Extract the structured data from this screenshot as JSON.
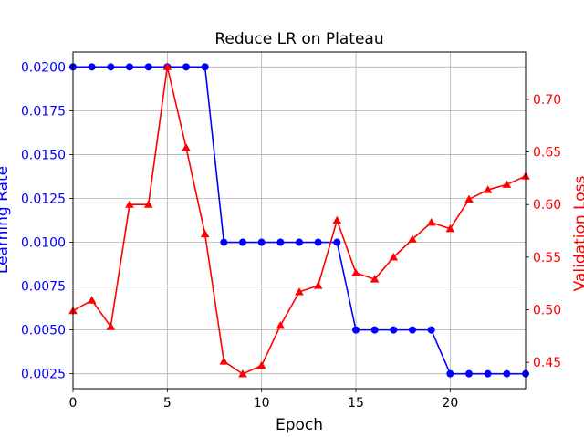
{
  "chart_data": {
    "type": "line",
    "title": "Reduce LR on Plateau",
    "xlabel": "Epoch",
    "ylabel_left": "Learning Rate",
    "ylabel_right": "Validation Loss",
    "xlim": [
      0,
      24
    ],
    "ylim_left": [
      0.00165,
      0.02085
    ],
    "ylim_right": [
      0.425,
      0.745
    ],
    "x_ticks": [
      0,
      5,
      10,
      15,
      20
    ],
    "y_ticks_left": [
      "0.0025",
      "0.0050",
      "0.0075",
      "0.0100",
      "0.0125",
      "0.0150",
      "0.0175",
      "0.0200"
    ],
    "y_ticks_right": [
      "0.45",
      "0.50",
      "0.55",
      "0.60",
      "0.65",
      "0.70"
    ],
    "grid": true,
    "x": [
      0,
      1,
      2,
      3,
      4,
      5,
      6,
      7,
      8,
      9,
      10,
      11,
      12,
      13,
      14,
      15,
      16,
      17,
      18,
      19,
      20,
      21,
      22,
      23,
      24
    ],
    "series": [
      {
        "name": "Learning Rate",
        "axis": "left",
        "color": "#0000ff",
        "marker": "circle",
        "values": [
          0.02,
          0.02,
          0.02,
          0.02,
          0.02,
          0.02,
          0.02,
          0.02,
          0.01,
          0.01,
          0.01,
          0.01,
          0.01,
          0.01,
          0.01,
          0.005,
          0.005,
          0.005,
          0.005,
          0.005,
          0.0025,
          0.0025,
          0.0025,
          0.0025,
          0.0025
        ]
      },
      {
        "name": "Validation Loss",
        "axis": "right",
        "color": "#ff0000",
        "marker": "triangle",
        "values": [
          0.499,
          0.509,
          0.484,
          0.6,
          0.6,
          0.731,
          0.654,
          0.572,
          0.451,
          0.439,
          0.447,
          0.485,
          0.517,
          0.523,
          0.585,
          0.535,
          0.529,
          0.55,
          0.567,
          0.583,
          0.577,
          0.605,
          0.614,
          0.619,
          0.627
        ]
      }
    ]
  }
}
